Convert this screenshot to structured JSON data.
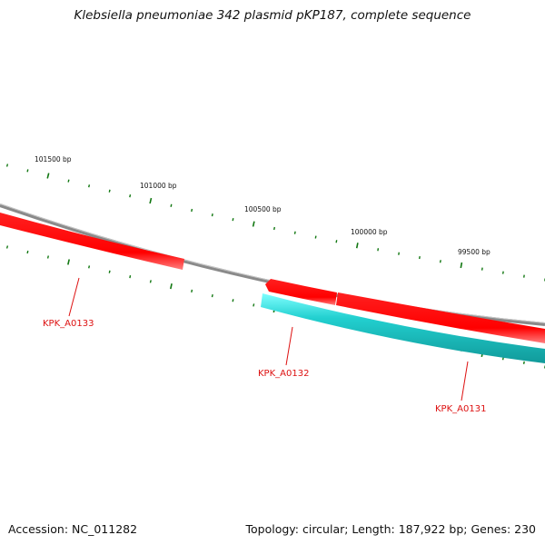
{
  "title": "Klebsiella pneumoniae 342 plasmid pKP187, complete sequence",
  "footer": {
    "accession": "Accession: NC_011282",
    "summary": "Topology: circular; Length: 187,922 bp; Genes: 230"
  },
  "scale_labels": [
    "101500 bp",
    "101000 bp",
    "100500 bp",
    "100000 bp",
    "99500 bp"
  ],
  "genes": [
    {
      "name": "KPK_A0133",
      "strand": "forward",
      "color": "#ff0000"
    },
    {
      "name": "KPK_A0132",
      "strand": "forward",
      "color": "#ff0000"
    },
    {
      "name": "KPK_A0131",
      "strand": "forward",
      "color": "#ff0000"
    }
  ],
  "colors": {
    "backbone": "#888888",
    "forward_gene": "#ff0000",
    "reverse_gene": "#22cccc",
    "ticks": "#117711",
    "gene_label": "#dd1111"
  }
}
